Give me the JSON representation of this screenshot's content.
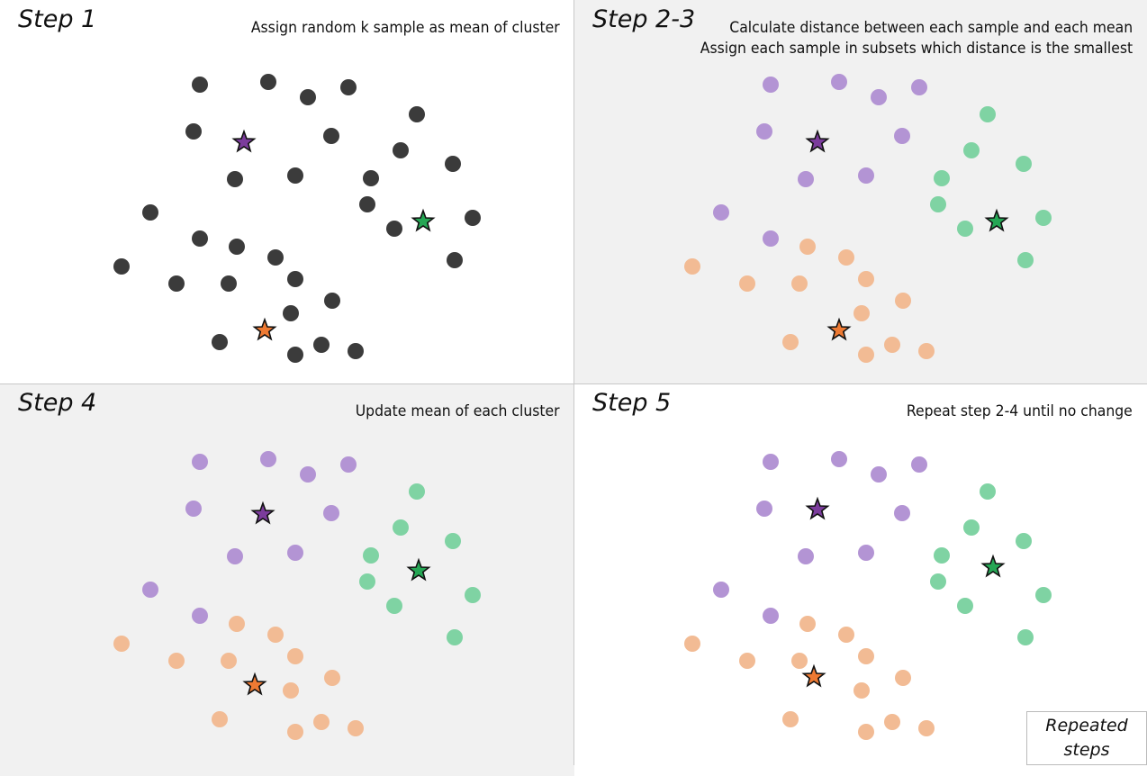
{
  "colors": {
    "unassigned": "#3b3b3b",
    "cluster1": "#b394d4",
    "cluster2": "#7fd3a3",
    "cluster3": "#f2bb94",
    "centroid1": "#7b3c9c",
    "centroid2": "#25a654",
    "centroid3": "#ee7a33"
  },
  "panels": [
    {
      "title": "Step 1",
      "description": [
        "Assign random k sample as mean of cluster"
      ]
    },
    {
      "title": "Step 2-3",
      "description": [
        "Calculate distance between each sample and each mean",
        "Assign each sample in subsets which distance is the smallest"
      ]
    },
    {
      "title": "Step 4",
      "description": [
        "Update mean of each cluster"
      ]
    },
    {
      "title": "Step 5",
      "description": [
        "Repeat step 2-4 until no change"
      ]
    }
  ],
  "legend": {
    "line1": "Repeated",
    "line2": "steps"
  }
}
